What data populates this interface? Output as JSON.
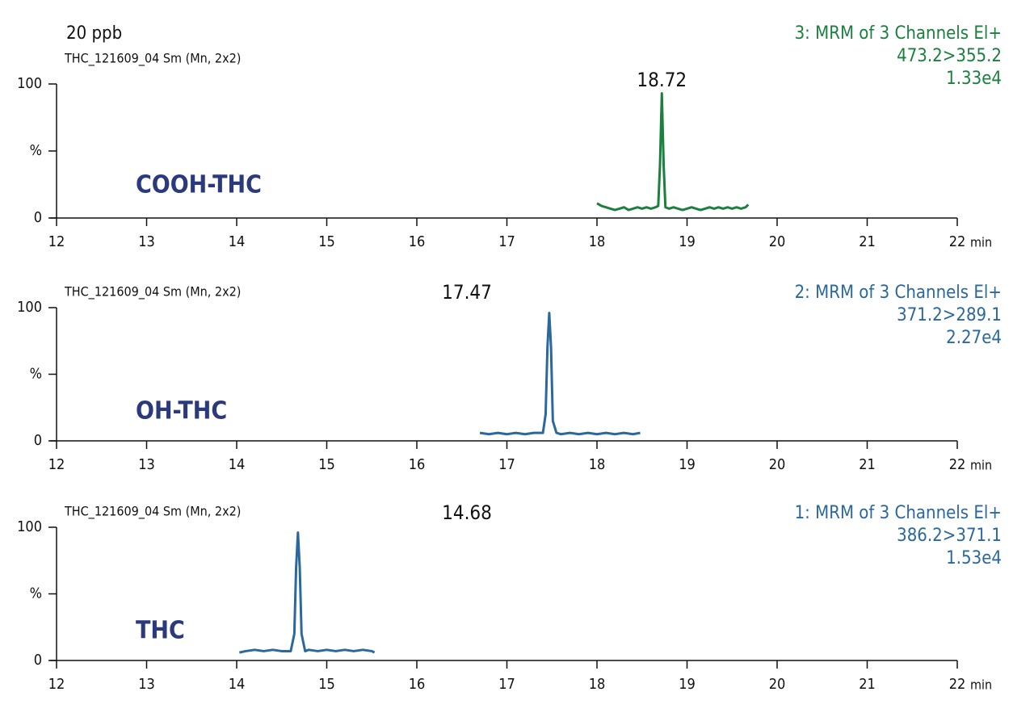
{
  "chart_data": [
    {
      "type": "line",
      "title": "20 ppb",
      "subtitle": "THC_121609_04 Sm (Mn, 2x2)",
      "label": "COOH-THC",
      "peak_label": "18.72",
      "channel": "3: MRM of 3 Channels El+",
      "transition": "473.2>355.2",
      "intensity": "1.33e4",
      "x_label": "min",
      "color": "#1b7f3e",
      "x": [
        18.0,
        18.05,
        18.1,
        18.15,
        18.2,
        18.25,
        18.3,
        18.35,
        18.4,
        18.45,
        18.5,
        18.55,
        18.6,
        18.65,
        18.68,
        18.7,
        18.72,
        18.74,
        18.76,
        18.8,
        18.85,
        18.9,
        18.95,
        19.0,
        19.05,
        19.1,
        19.15,
        19.2,
        19.25,
        19.3,
        19.35,
        19.4,
        19.45,
        19.5,
        19.55,
        19.6,
        19.65,
        19.68
      ],
      "values": [
        11,
        9,
        8,
        7,
        6,
        7,
        8,
        6,
        7,
        8,
        7,
        8,
        7,
        8,
        9,
        40,
        93,
        40,
        8,
        7,
        8,
        7,
        6,
        7,
        8,
        7,
        6,
        7,
        8,
        7,
        8,
        7,
        8,
        7,
        8,
        7,
        8,
        10
      ],
      "xlim": [
        12,
        22
      ],
      "xticks": [
        12,
        13,
        14,
        15,
        16,
        17,
        18,
        19,
        20,
        21,
        22
      ],
      "ylim": [
        0,
        100
      ],
      "yticks": [
        0,
        {
          "value": 50,
          "label": "%"
        },
        100
      ]
    },
    {
      "type": "line",
      "subtitle": "THC_121609_04 Sm (Mn, 2x2)",
      "label": "OH-THC",
      "peak_label": "17.47",
      "channel": "2: MRM of 3 Channels El+",
      "transition": "371.2>289.1",
      "intensity": "2.27e4",
      "x_label": "min",
      "color": "#2a689e",
      "x": [
        16.7,
        16.8,
        16.9,
        17.0,
        17.1,
        17.2,
        17.3,
        17.4,
        17.43,
        17.45,
        17.47,
        17.49,
        17.51,
        17.55,
        17.6,
        17.7,
        17.8,
        17.9,
        18.0,
        18.1,
        18.2,
        18.3,
        18.4,
        18.48
      ],
      "values": [
        6,
        5,
        6,
        5,
        6,
        5,
        6,
        6,
        20,
        70,
        96,
        70,
        15,
        6,
        5,
        6,
        5,
        6,
        5,
        6,
        5,
        6,
        5,
        6
      ],
      "xlim": [
        12,
        22
      ],
      "xticks": [
        12,
        13,
        14,
        15,
        16,
        17,
        18,
        19,
        20,
        21,
        22
      ],
      "ylim": [
        0,
        100
      ],
      "yticks": [
        0,
        {
          "value": 50,
          "label": "%"
        },
        100
      ]
    },
    {
      "type": "line",
      "subtitle": "THC_121609_04 Sm (Mn, 2x2)",
      "label": "THC",
      "peak_label": "14.68",
      "channel": "1: MRM of 3 Channels El+",
      "transition": "386.2>371.1",
      "intensity": "1.53e4",
      "x_label": "min",
      "color": "#2a689e",
      "x": [
        14.03,
        14.1,
        14.2,
        14.3,
        14.4,
        14.5,
        14.6,
        14.64,
        14.66,
        14.68,
        14.7,
        14.72,
        14.76,
        14.8,
        14.9,
        15.0,
        15.1,
        15.2,
        15.3,
        15.4,
        15.5,
        15.53
      ],
      "values": [
        6,
        7,
        8,
        7,
        8,
        7,
        7,
        20,
        70,
        96,
        70,
        20,
        7,
        8,
        7,
        8,
        7,
        8,
        7,
        8,
        7,
        6
      ],
      "xlim": [
        12,
        22
      ],
      "xticks": [
        12,
        13,
        14,
        15,
        16,
        17,
        18,
        19,
        20,
        21,
        22
      ],
      "ylim": [
        0,
        100
      ],
      "yticks": [
        0,
        {
          "value": 50,
          "label": "%"
        },
        100
      ]
    }
  ]
}
